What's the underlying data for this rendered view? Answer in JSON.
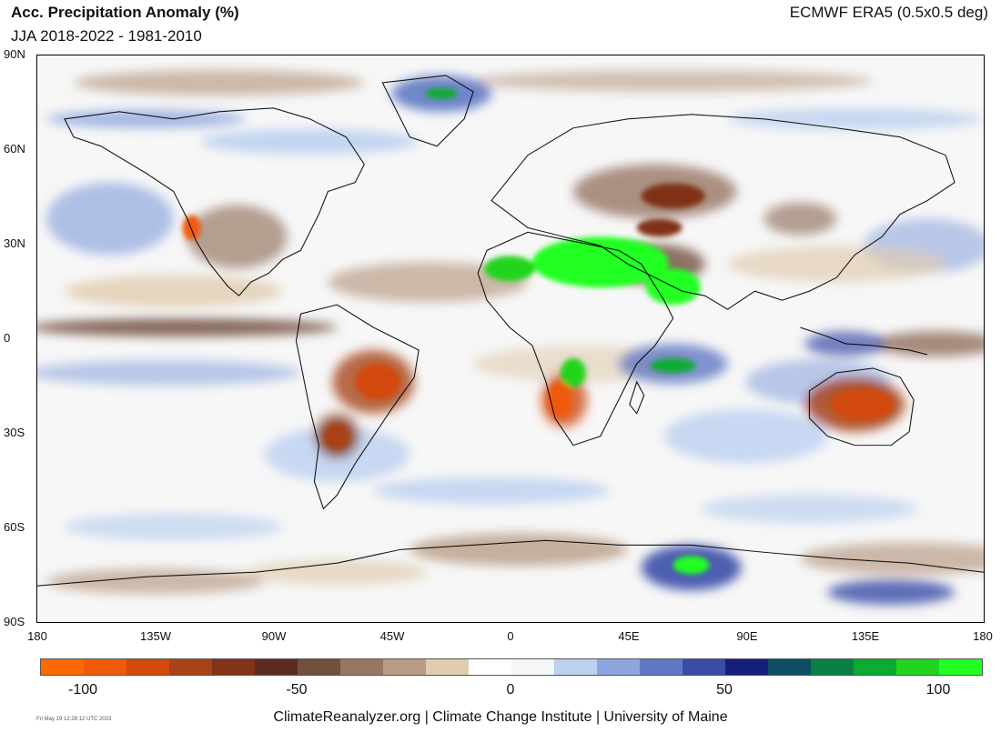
{
  "title": "Acc. Precipitation Anomaly (%)",
  "subtitle": "JJA 2018-2022 - 1981-2010",
  "source": "ECMWF ERA5 (0.5x0.5 deg)",
  "footer": "ClimateReanalyzer.org | Climate Change Institute | University of Maine",
  "timestamp": "Fri May 19 12:28:12 UTC 2023",
  "lat_labels": [
    "90N",
    "60N",
    "30N",
    "0",
    "30S",
    "60S",
    "90S"
  ],
  "lon_labels": [
    "180",
    "135W",
    "90W",
    "45W",
    "0",
    "45E",
    "90E",
    "135E",
    "180"
  ],
  "colorbar": {
    "colors": [
      "#ff6a00",
      "#ee5a08",
      "#d24a0c",
      "#a84318",
      "#7f3317",
      "#5b2d20",
      "#73503e",
      "#977764",
      "#b99c86",
      "#e0ccaf",
      "#ffffff",
      "#f4f6f8",
      "#bcd0f0",
      "#8ea6de",
      "#6079c4",
      "#3a4ca8",
      "#151f7a",
      "#0c4d62",
      "#0a8046",
      "#0aab30",
      "#21d41f",
      "#22ff22"
    ],
    "ticks": [
      {
        "label": "-100",
        "value": -100
      },
      {
        "label": "-50",
        "value": -50
      },
      {
        "label": "0",
        "value": 0
      },
      {
        "label": "50",
        "value": 50
      },
      {
        "label": "100",
        "value": 100
      }
    ]
  },
  "anomaly_regions": [
    {
      "region": "Sahara / Arabia",
      "anomaly": "strong positive",
      "color": "#22ff22"
    },
    {
      "region": "Greenland",
      "anomaly": "positive",
      "color": "#3a4ca8"
    },
    {
      "region": "East Antarctica",
      "anomaly": "positive",
      "color": "#21d41f"
    },
    {
      "region": "Brazil",
      "anomaly": "strong negative",
      "color": "#d24a0c"
    },
    {
      "region": "Australia",
      "anomaly": "strong negative",
      "color": "#d24a0c"
    },
    {
      "region": "Southern Africa",
      "anomaly": "negative",
      "color": "#ee5a08"
    },
    {
      "region": "Central Asia",
      "anomaly": "negative",
      "color": "#7f3317"
    },
    {
      "region": "Equatorial Pacific",
      "anomaly": "negative",
      "color": "#73503e"
    }
  ]
}
